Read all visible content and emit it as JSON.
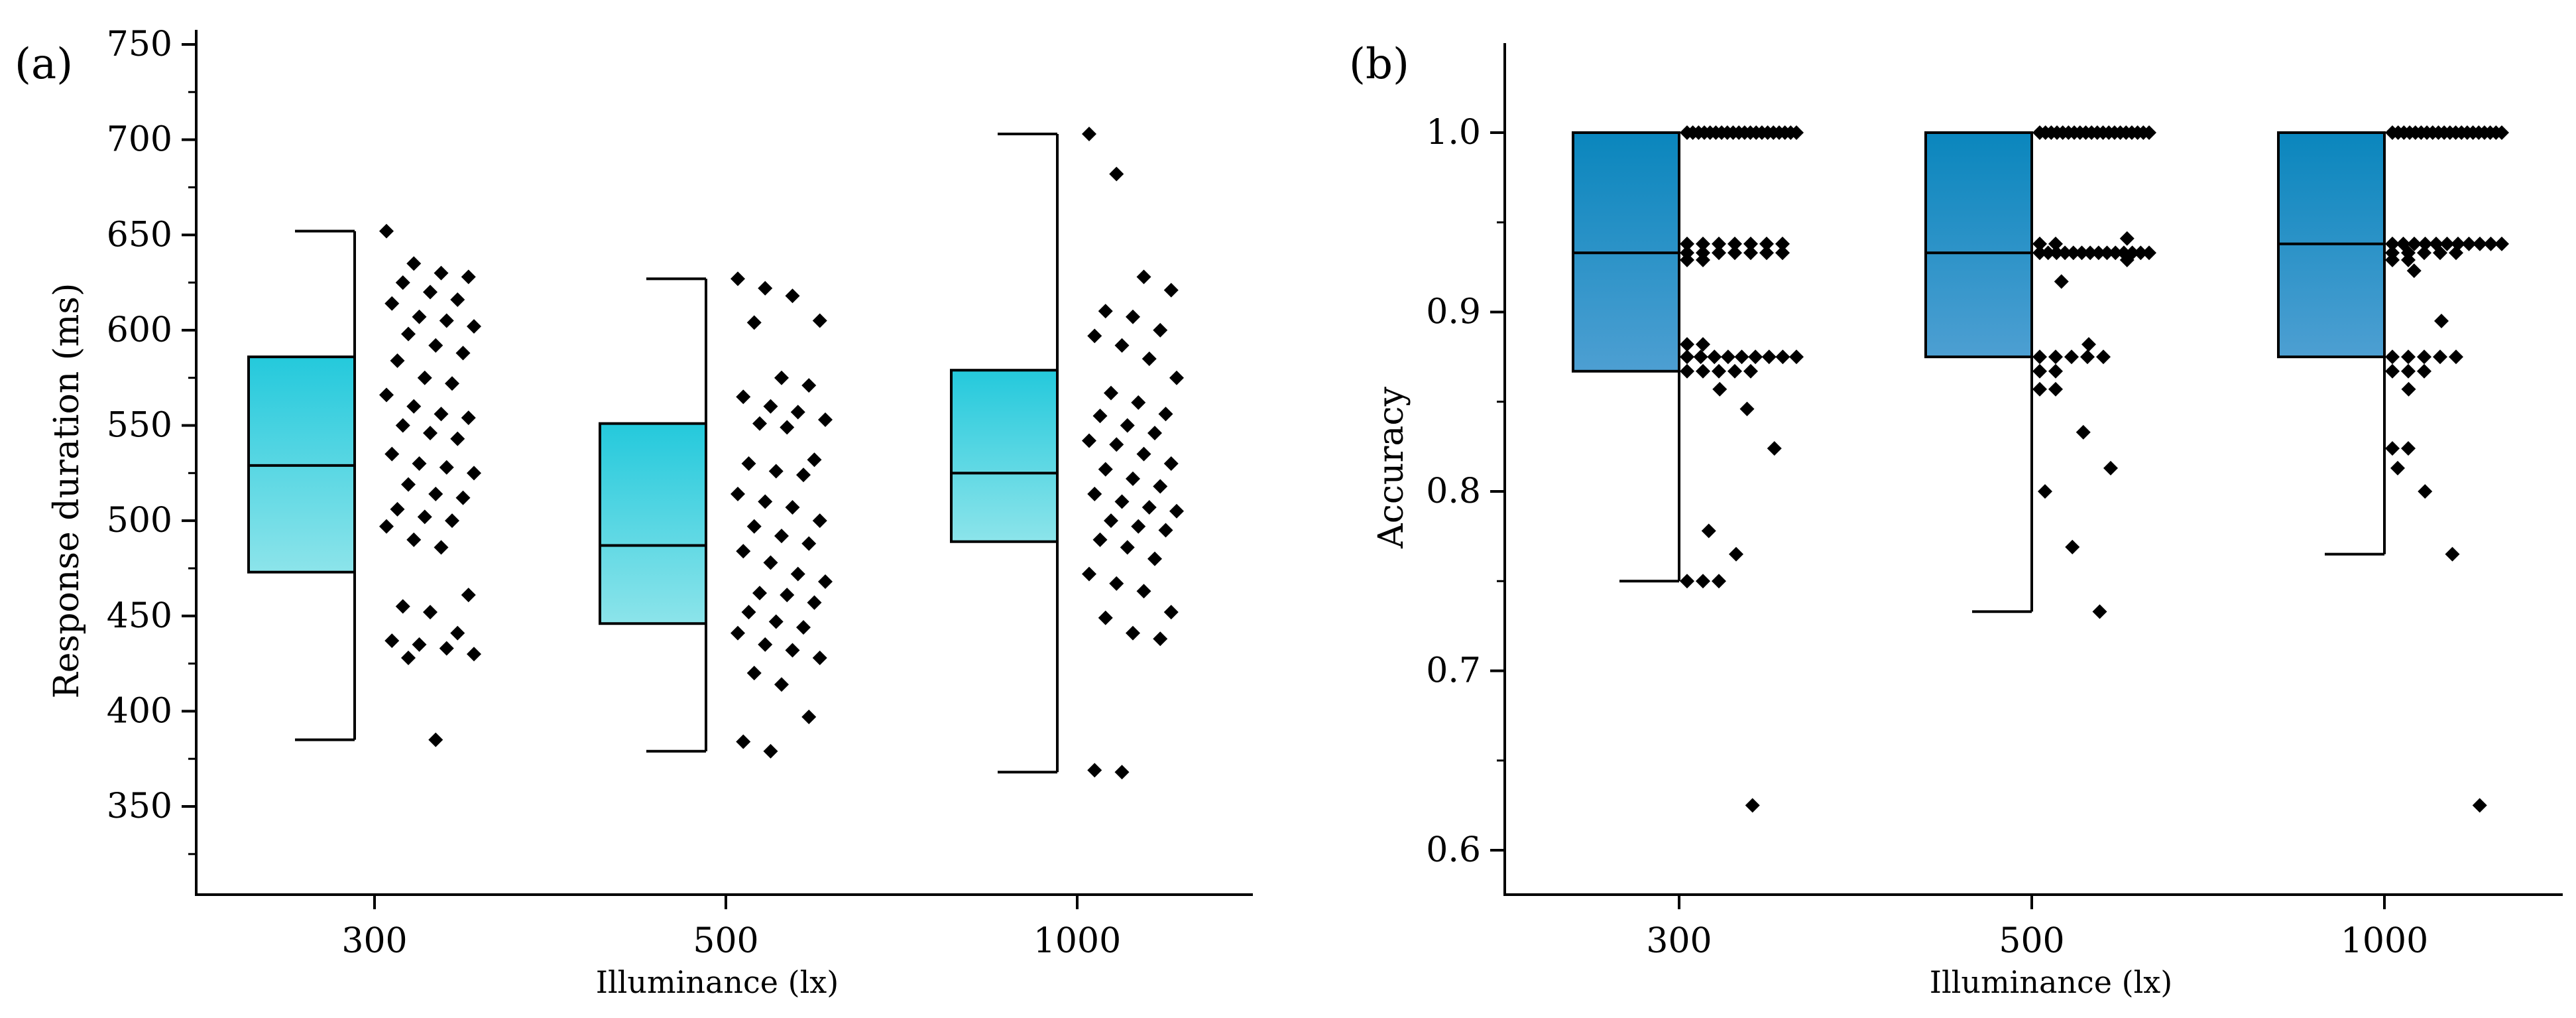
{
  "chart_data": [
    {
      "type": "box",
      "panel_label": "(a)",
      "xlabel": "Illuminance (lx)",
      "ylabel": "Response duration (ms)",
      "ylim": [
        325,
        750
      ],
      "yticks": [
        "350",
        "400",
        "450",
        "500",
        "550",
        "600",
        "650",
        "700",
        "750"
      ],
      "categories": [
        "300",
        "500",
        "1000"
      ],
      "box_colors": [
        "#24c9dc",
        "#8ce4ea"
      ],
      "boxes": [
        {
          "category": "300",
          "q1": 473,
          "median": 529,
          "q3": 586,
          "whisker_low": 385,
          "whisker_high": 652
        },
        {
          "category": "500",
          "q1": 446,
          "median": 487,
          "q3": 551,
          "whisker_low": 379,
          "whisker_high": 627
        },
        {
          "category": "1000",
          "q1": 489,
          "median": 525,
          "q3": 579,
          "whisker_low": 368,
          "whisker_high": 703
        }
      ],
      "points": [
        {
          "category": "300",
          "values": [
            652,
            635,
            630,
            628,
            625,
            620,
            616,
            614,
            607,
            605,
            602,
            598,
            592,
            588,
            584,
            575,
            572,
            566,
            560,
            556,
            554,
            550,
            546,
            543,
            535,
            530,
            528,
            525,
            519,
            514,
            512,
            506,
            502,
            500,
            497,
            490,
            486,
            461,
            455,
            452,
            441,
            437,
            435,
            433,
            430,
            428,
            385
          ]
        },
        {
          "category": "500",
          "values": [
            627,
            622,
            618,
            605,
            604,
            575,
            571,
            565,
            560,
            557,
            553,
            551,
            549,
            532,
            530,
            526,
            524,
            514,
            510,
            507,
            500,
            497,
            492,
            488,
            484,
            478,
            472,
            468,
            462,
            461,
            457,
            452,
            447,
            444,
            441,
            435,
            432,
            428,
            420,
            414,
            397,
            384,
            379
          ]
        },
        {
          "category": "1000",
          "values": [
            703,
            682,
            628,
            621,
            610,
            607,
            600,
            597,
            592,
            585,
            575,
            567,
            562,
            556,
            555,
            550,
            546,
            542,
            540,
            535,
            530,
            527,
            522,
            518,
            514,
            510,
            507,
            505,
            500,
            497,
            495,
            490,
            486,
            480,
            472,
            467,
            463,
            452,
            449,
            441,
            438,
            369,
            368
          ]
        }
      ]
    },
    {
      "type": "box",
      "panel_label": "(b)",
      "xlabel": "Illuminance (lx)",
      "ylabel": "Accuracy",
      "ylim": [
        0.575,
        1.05
      ],
      "yticks": [
        "0.6",
        "0.7",
        "0.8",
        "0.9",
        "1.0"
      ],
      "categories": [
        "300",
        "500",
        "1000"
      ],
      "box_colors": [
        "#0a86bd",
        "#4d9fd2"
      ],
      "boxes": [
        {
          "category": "300",
          "q1": 0.867,
          "median": 0.933,
          "q3": 1.0,
          "whisker_low": 0.75,
          "whisker_high": 1.0
        },
        {
          "category": "500",
          "q1": 0.875,
          "median": 0.933,
          "q3": 1.0,
          "whisker_low": 0.733,
          "whisker_high": 1.0
        },
        {
          "category": "1000",
          "q1": 0.875,
          "median": 0.938,
          "q3": 1.0,
          "whisker_low": 0.765,
          "whisker_high": 1.0
        }
      ],
      "points": [
        {
          "category": "300",
          "values": [
            1.0,
            1.0,
            1.0,
            1.0,
            1.0,
            1.0,
            1.0,
            1.0,
            1.0,
            1.0,
            1.0,
            1.0,
            1.0,
            1.0,
            1.0,
            1.0,
            1.0,
            1.0,
            1.0,
            1.0,
            0.938,
            0.938,
            0.938,
            0.938,
            0.938,
            0.938,
            0.938,
            0.933,
            0.933,
            0.933,
            0.933,
            0.933,
            0.933,
            0.933,
            0.929,
            0.929,
            0.882,
            0.882,
            0.875,
            0.875,
            0.875,
            0.875,
            0.875,
            0.875,
            0.875,
            0.875,
            0.875,
            0.867,
            0.867,
            0.867,
            0.867,
            0.867,
            0.857,
            0.846,
            0.824,
            0.778,
            0.765,
            0.75,
            0.75,
            0.75,
            0.625
          ]
        },
        {
          "category": "500",
          "values": [
            1.0,
            1.0,
            1.0,
            1.0,
            1.0,
            1.0,
            1.0,
            1.0,
            1.0,
            1.0,
            1.0,
            1.0,
            1.0,
            1.0,
            1.0,
            1.0,
            1.0,
            1.0,
            1.0,
            1.0,
            0.941,
            0.938,
            0.938,
            0.933,
            0.933,
            0.933,
            0.933,
            0.933,
            0.933,
            0.933,
            0.933,
            0.933,
            0.933,
            0.933,
            0.933,
            0.933,
            0.933,
            0.929,
            0.917,
            0.882,
            0.875,
            0.875,
            0.875,
            0.875,
            0.875,
            0.867,
            0.867,
            0.857,
            0.857,
            0.833,
            0.813,
            0.8,
            0.769,
            0.733
          ]
        },
        {
          "category": "1000",
          "values": [
            1.0,
            1.0,
            1.0,
            1.0,
            1.0,
            1.0,
            1.0,
            1.0,
            1.0,
            1.0,
            1.0,
            1.0,
            1.0,
            1.0,
            1.0,
            1.0,
            1.0,
            1.0,
            1.0,
            1.0,
            0.938,
            0.938,
            0.938,
            0.938,
            0.938,
            0.938,
            0.938,
            0.938,
            0.938,
            0.938,
            0.938,
            0.933,
            0.933,
            0.933,
            0.933,
            0.933,
            0.929,
            0.929,
            0.923,
            0.895,
            0.875,
            0.875,
            0.875,
            0.875,
            0.875,
            0.867,
            0.867,
            0.867,
            0.857,
            0.824,
            0.824,
            0.813,
            0.8,
            0.765,
            0.625
          ]
        }
      ]
    }
  ]
}
